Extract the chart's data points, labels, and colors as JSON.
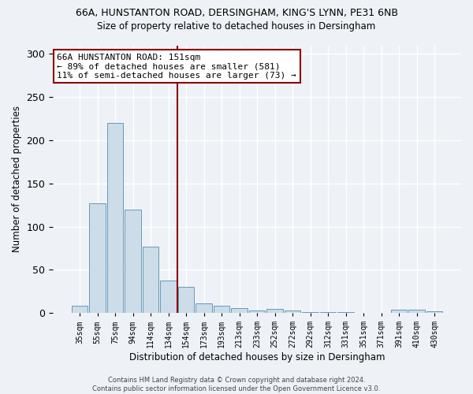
{
  "title_line1": "66A, HUNSTANTON ROAD, DERSINGHAM, KING'S LYNN, PE31 6NB",
  "title_line2": "Size of property relative to detached houses in Dersingham",
  "xlabel": "Distribution of detached houses by size in Dersingham",
  "ylabel": "Number of detached properties",
  "categories": [
    "35sqm",
    "55sqm",
    "75sqm",
    "94sqm",
    "114sqm",
    "134sqm",
    "154sqm",
    "173sqm",
    "193sqm",
    "213sqm",
    "233sqm",
    "252sqm",
    "272sqm",
    "292sqm",
    "312sqm",
    "331sqm",
    "351sqm",
    "371sqm",
    "391sqm",
    "410sqm",
    "430sqm"
  ],
  "values": [
    8,
    127,
    220,
    120,
    77,
    38,
    30,
    11,
    8,
    6,
    3,
    5,
    3,
    1,
    1,
    1,
    0,
    0,
    4,
    4,
    2
  ],
  "bar_color": "#ccdce8",
  "bar_edge_color": "#6699bb",
  "vline_x_index": 6,
  "vline_color": "#8b0000",
  "annotation_line1": "66A HUNSTANTON ROAD: 151sqm",
  "annotation_line2": "← 89% of detached houses are smaller (581)",
  "annotation_line3": "11% of semi-detached houses are larger (73) →",
  "annotation_box_color": "#ffffff",
  "annotation_box_edge": "#8b0000",
  "footer_line1": "Contains HM Land Registry data © Crown copyright and database right 2024.",
  "footer_line2": "Contains public sector information licensed under the Open Government Licence v3.0.",
  "ylim": [
    0,
    310
  ],
  "yticks": [
    0,
    50,
    100,
    150,
    200,
    250,
    300
  ],
  "background_color": "#eef2f6",
  "grid_color": "#ffffff"
}
